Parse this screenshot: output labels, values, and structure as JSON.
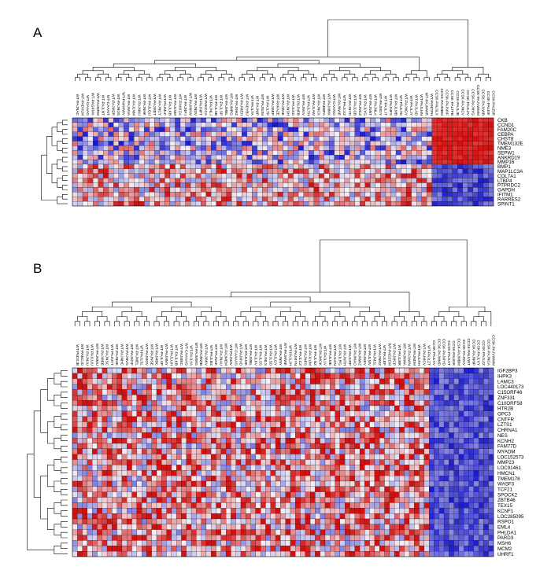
{
  "chart_data": [
    {
      "type": "heatmap",
      "panel_label": "A",
      "rows": [
        "CKB",
        "CCND1",
        "FAM20C",
        "CEBPA",
        "CHST8",
        "TMEM132E",
        "NME3",
        "SEPW1",
        "ANKRD19",
        "MMP16",
        "BMP1",
        "MAP1LC3A",
        "COL7A1",
        "LTBP4",
        "PTPRDC2",
        "GAPDH",
        "IFITM1",
        "RARRES2",
        "SPINT1"
      ],
      "columns": [
        "WT-PAJNAC",
        "WT-PADXLM",
        "WT-GAAAG",
        "WT-PAGKMX",
        "WT-PAJMRM",
        "WT-PAJLNT",
        "WT-CAAAIT",
        "WT-PAJMZR",
        "WT-PAJNUS",
        "WT-PAKMWV",
        "WT-PAJMVA",
        "WT-PAJLNM",
        "WT-PAJNNJ",
        "WT-PAJNHK",
        "WT-PAJLGU",
        "WT-PAJMDT",
        "WT-PAJNCY",
        "WT-PAJMLF",
        "WT-PAJLKB",
        "WT-PAJLNM",
        "WT-PAKKZA",
        "WT-PAJNPJ",
        "WT-PAJMKW",
        "WT-PAJNDV",
        "WT-PAJNPT",
        "WT-PAKKCA",
        "WT-PAJNLJ",
        "WT-PAJLSB",
        "WT-PAJLSP",
        "WT-PAJMBL",
        "WT-PAJMRG",
        "WT-PAJNHZ",
        "WT-PAJMEH",
        "WT-PADYBJ",
        "WT-PAJLYA",
        "WT-PAJNIP",
        "WT-PAJNJM",
        "WT-PAJLTF",
        "WT-PAJMEP",
        "WT-PAKAZE",
        "WT-PAJMAE",
        "WT-PAJNSH",
        "WT-PAJLKD",
        "WT-PAJNFB",
        "WT-PAJNVV",
        "WT-PAJLTH",
        "WT-PAJLAW",
        "WT-PAJNCX",
        "WT-PAEBFA",
        "WT-PAJNMX",
        "WT-CAAAIO",
        "WT-PAJNWE",
        "WT-PAJLXZ",
        "WT-PAJNYD",
        "WT-PAJLCB",
        "WT-PAJNCZ",
        "WT-PAJLYG",
        "WT-PAJNNT",
        "WT-PAJNLA",
        "WT-PAJMGY",
        "WT-PAJLJT",
        "WT-PAJNFS",
        "WT-PAJLMB",
        "WT-PAJLTD",
        "WT-PAJNGY",
        "WT-PAJLJY",
        "WT-PAJLAD",
        "WT-PAJLHN",
        "WT-PAJMWR",
        "WT-PANTPH",
        "CCSK-PALSLX",
        "CCSK-PAJMBM",
        "CCSK-PAJNVF",
        "CCSK-PALTFB",
        "CCSK-PAJLJB",
        "CCSK-PAJNCV",
        "CCSK-PAJLZV",
        "CCSK-PAJNYG",
        "CCSK-PAJVWMM",
        "CCSK-PAJLWB",
        "CCSK-PALEIF",
        "CCSK-PALEIR"
      ],
      "groups": [
        {
          "name": "WT",
          "count": 70
        },
        {
          "name": "CCSK",
          "count": 12
        }
      ],
      "group_high_rows": [
        0,
        1,
        2,
        3,
        4,
        5,
        6,
        7,
        8,
        9
      ],
      "colors": {
        "low": "#1a1acc",
        "mid": "#f3f0f6",
        "high": "#d40f0f"
      },
      "seed": 11
    },
    {
      "type": "heatmap",
      "panel_label": "B",
      "rows": [
        "IGF2BP3",
        "IHPK3",
        "LAMC3",
        "LOC440173",
        "C15ORF46",
        "ZNF331",
        "C10ORF58",
        "HTR2B",
        "GPC3",
        "CNTFR",
        "LZTS1",
        "CHRNA1",
        "NES",
        "KCNH2",
        "FAM77D",
        "MYADM",
        "LOC152573",
        "MMP23",
        "LOC91461",
        "HMCN1",
        "TMEM178",
        "WASF3",
        "TCF21",
        "SPOCK2",
        "ZBTB46",
        "TEX15",
        "KCNF1",
        "LOC285095",
        "RSPO1",
        "EML4",
        "PHLDA1",
        "PARD3",
        "MSH6",
        "MCM2",
        "UHRF1"
      ],
      "columns": [
        "WT-PADZJB",
        "WT-PAECJD",
        "WT-PAJNJU",
        "WT-PAJLUU",
        "WT-PAJNMU",
        "WT-PAJMEE",
        "WT-PAJNSC",
        "WT-PAJNYT",
        "WT-PAJNHK",
        "WT-PAJNHC",
        "WT-PAJNVG",
        "WT-PAJMYF",
        "WT-PAJMEL",
        "WT-PAJLSL",
        "WT-PAJMDV",
        "WT-PAJNSE",
        "WT-PAJMBC",
        "WT-PAJLSP",
        "WT-PAJNMY",
        "WT-PAJLUH",
        "WT-PAJLKB",
        "WT-PAJMEC",
        "WT-CAAAAG",
        "WT-PAJLYA",
        "WT-PAJMWG",
        "WT-PAJNWB",
        "WT-PAJMKV",
        "WT-PAJLBZ",
        "WT-PAJNAK",
        "WT-PAJNAU",
        "WT-PAJMEM",
        "WT-PAJNAV",
        "WT-CAAAAS",
        "WT-PAJMVD",
        "WT-PAJLMK",
        "WT-PAJMBL",
        "WT-PAJLKV",
        "WT-PAJLSS",
        "WT-PAJNLS",
        "WT-PAJLSD",
        "WT-PAJLGY",
        "WT-PAJNNY",
        "WT-PAJMWE",
        "WT-PAJLJH",
        "WT-PAJMYN",
        "WT-PAJLCZ",
        "WT-PAJNPS",
        "WT-PAJLUM",
        "WT-PAJLNZ",
        "WT-PAJMOK",
        "WT-PAJLLV",
        "WT-PAJLME",
        "WT-PAJLKN",
        "WT-PAJLRG",
        "WT-PAJNTH",
        "WT-PAJLRP",
        "WT-PAJMAO",
        "WT-PAJNWZ",
        "WT-PAJNKV",
        "WT-PAJLMV",
        "WT-PAJMZL",
        "WT-PAJNMZ",
        "WT-PAJLEF",
        "WT-PADZCM",
        "WT-PAJMCP",
        "WT-PAJLBR",
        "WT-PAJNWA",
        "WT-PAJLWN",
        "WT-PAJNDM",
        "WT-PAJLKH",
        "WT-PAJMCV",
        "WT-PAJLZT",
        "CCSK-PAJLVV",
        "CCSK-PAJNMD",
        "CCSK-PAJMYD",
        "CCSK-PAJLVT",
        "CCSK-PALEIR",
        "CCSK-PAJMBM",
        "CCSK-PAJNVV",
        "CCSK-PALUWT",
        "CCSK-PAJNNP",
        "CCSK-PAJLXY",
        "CCSK-PAJLZZ",
        "CCSK-PAJNCA",
        "CCSK-PAJVWMM"
      ],
      "groups": [
        {
          "name": "WT",
          "count": 72
        },
        {
          "name": "CCSK",
          "count": 13
        }
      ],
      "group_high_rows": [],
      "colors": {
        "low": "#1a1acc",
        "mid": "#f3f0f6",
        "high": "#d40f0f"
      },
      "seed": 29
    }
  ]
}
